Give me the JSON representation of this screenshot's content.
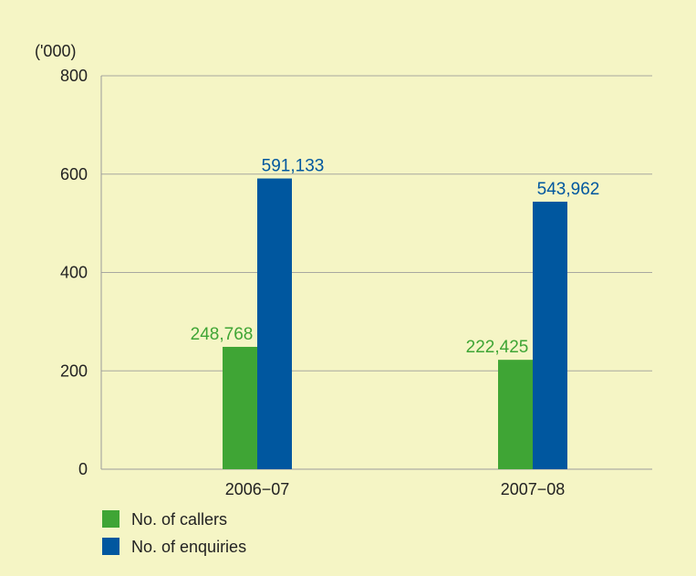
{
  "chart_data": {
    "type": "bar",
    "unit_label": "('000)",
    "categories": [
      "2006−07",
      "2007−08"
    ],
    "series": [
      {
        "name": "No. of callers",
        "color": "#3fa535",
        "values": [
          248.768,
          222.425
        ],
        "labels": [
          "248,768",
          "222,425"
        ]
      },
      {
        "name": "No. of enquiries",
        "color": "#00579f",
        "values": [
          591.133,
          543.962
        ],
        "labels": [
          "591,133",
          "543,962"
        ]
      }
    ],
    "ylim": [
      0,
      800
    ],
    "yticks": [
      0,
      200,
      400,
      600,
      800
    ],
    "grid": true,
    "legend_position": "bottom-left"
  }
}
